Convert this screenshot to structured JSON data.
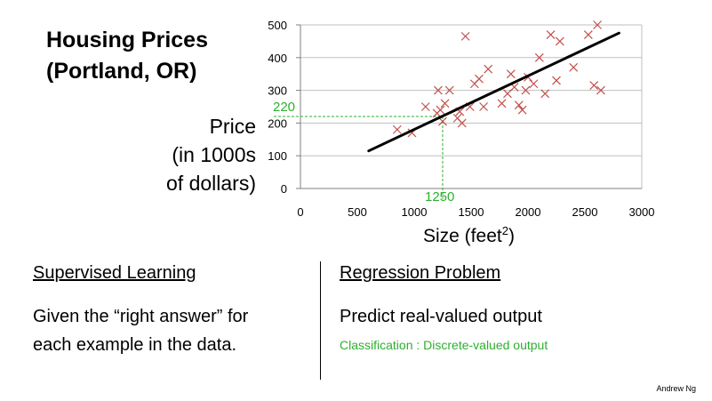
{
  "slide": {
    "title_line1": "Housing Prices",
    "title_line2": "(Portland, OR)",
    "ylabel_lines": [
      "Price",
      "(in 1000s",
      "of dollars)"
    ],
    "xlabel": "Size (feet",
    "xlabel_sup": "2",
    "xlabel_close": ")",
    "left_heading": "Supervised Learning",
    "left_body_line1": "Given the “right answer” for",
    "left_body_line2": "each example in the data.",
    "right_heading": "Regression Problem",
    "right_body": "Predict real-valued output",
    "right_note": "Classification : Discrete-valued output",
    "credit": "Andrew Ng",
    "accent_color": "#2db02d",
    "marker_color": "#c0504d"
  },
  "chart_data": {
    "type": "scatter",
    "xlim": [
      0,
      3000
    ],
    "ylim": [
      0,
      500
    ],
    "xticks": [
      0,
      500,
      1000,
      1500,
      2000,
      2500,
      3000
    ],
    "yticks": [
      0,
      100,
      200,
      300,
      400,
      500
    ],
    "grid": true,
    "points": [
      [
        850,
        180
      ],
      [
        980,
        170
      ],
      [
        1100,
        250
      ],
      [
        1200,
        230
      ],
      [
        1210,
        300
      ],
      [
        1230,
        240
      ],
      [
        1250,
        205
      ],
      [
        1270,
        260
      ],
      [
        1310,
        300
      ],
      [
        1380,
        215
      ],
      [
        1400,
        235
      ],
      [
        1420,
        200
      ],
      [
        1450,
        465
      ],
      [
        1490,
        250
      ],
      [
        1530,
        320
      ],
      [
        1570,
        335
      ],
      [
        1610,
        250
      ],
      [
        1650,
        365
      ],
      [
        1770,
        260
      ],
      [
        1820,
        290
      ],
      [
        1850,
        350
      ],
      [
        1880,
        310
      ],
      [
        1920,
        255
      ],
      [
        1950,
        240
      ],
      [
        1980,
        300
      ],
      [
        2000,
        340
      ],
      [
        2050,
        320
      ],
      [
        2100,
        400
      ],
      [
        2150,
        290
      ],
      [
        2200,
        470
      ],
      [
        2250,
        330
      ],
      [
        2280,
        450
      ],
      [
        2400,
        370
      ],
      [
        2530,
        470
      ],
      [
        2580,
        315
      ],
      [
        2610,
        500
      ],
      [
        2640,
        300
      ]
    ],
    "fit_line": {
      "x": [
        600,
        2800
      ],
      "y": [
        115,
        475
      ]
    },
    "annotation": {
      "x": 1250,
      "y": 220,
      "x_label": "1250",
      "y_label": "220"
    }
  }
}
